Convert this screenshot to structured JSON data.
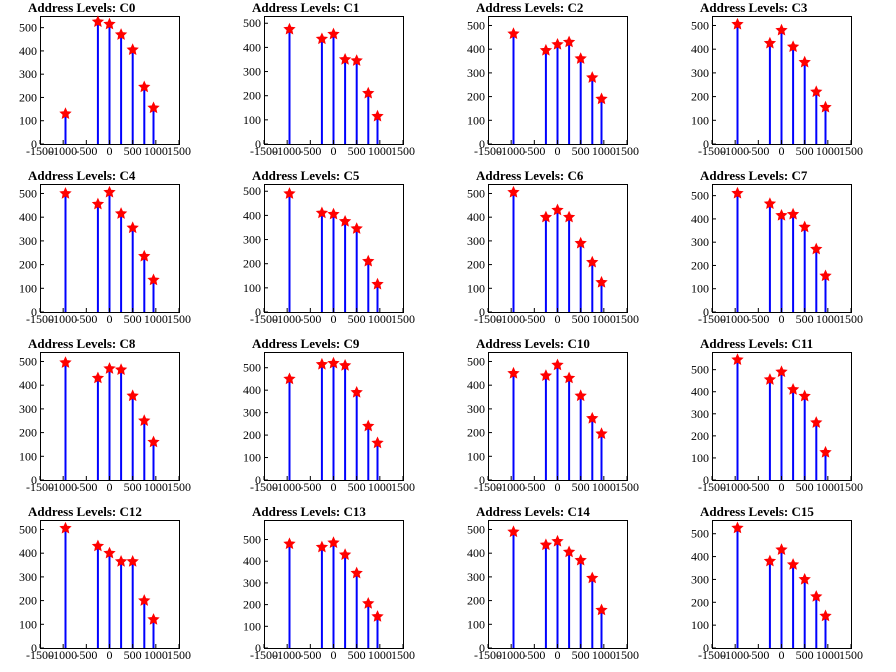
{
  "chart_data": [
    {
      "type": "bar",
      "title": "Address Levels: C0",
      "xlim": [
        -1500,
        1500
      ],
      "ylim": [
        0,
        550
      ],
      "xticks": [
        "-1500",
        "-1000",
        "-500",
        "0",
        "500",
        "1000",
        "1500"
      ],
      "yticks": [
        "0",
        "100",
        "200",
        "300",
        "400",
        "500"
      ],
      "x": [
        -950,
        -250,
        0,
        250,
        500,
        750,
        950
      ],
      "values": [
        130,
        525,
        515,
        470,
        405,
        245,
        155
      ]
    },
    {
      "type": "bar",
      "title": "Address Levels: C1",
      "xlim": [
        -1500,
        1500
      ],
      "ylim": [
        0,
        530
      ],
      "xticks": [
        "-1500",
        "-1000",
        "-500",
        "0",
        "500",
        "1000",
        "1500"
      ],
      "yticks": [
        "0",
        "100",
        "200",
        "300",
        "400",
        "500"
      ],
      "x": [
        -950,
        -250,
        0,
        250,
        500,
        750,
        950
      ],
      "values": [
        475,
        435,
        455,
        350,
        345,
        210,
        115
      ]
    },
    {
      "type": "bar",
      "title": "Address Levels: C2",
      "xlim": [
        -1500,
        1500
      ],
      "ylim": [
        0,
        540
      ],
      "xticks": [
        "-1500",
        "-1000",
        "-500",
        "0",
        "500",
        "1000",
        "1500"
      ],
      "yticks": [
        "0",
        "100",
        "200",
        "300",
        "400",
        "500"
      ],
      "x": [
        -950,
        -250,
        0,
        250,
        500,
        750,
        950
      ],
      "values": [
        465,
        395,
        420,
        430,
        360,
        280,
        190
      ]
    },
    {
      "type": "bar",
      "title": "Address Levels: C3",
      "xlim": [
        -1500,
        1500
      ],
      "ylim": [
        0,
        540
      ],
      "xticks": [
        "-1500",
        "-1000",
        "-500",
        "0",
        "500",
        "1000",
        "1500"
      ],
      "yticks": [
        "0",
        "100",
        "200",
        "300",
        "400",
        "500"
      ],
      "x": [
        -950,
        -250,
        0,
        250,
        500,
        750,
        950
      ],
      "values": [
        505,
        425,
        480,
        410,
        345,
        220,
        155
      ]
    },
    {
      "type": "bar",
      "title": "Address Levels: C4",
      "xlim": [
        -1500,
        1500
      ],
      "ylim": [
        0,
        540
      ],
      "xticks": [
        "-1500",
        "-1000",
        "-500",
        "0",
        "500",
        "1000",
        "1500"
      ],
      "yticks": [
        "0",
        "100",
        "200",
        "300",
        "400",
        "500"
      ],
      "x": [
        -950,
        -250,
        0,
        250,
        500,
        750,
        950
      ],
      "values": [
        500,
        455,
        505,
        415,
        355,
        235,
        135
      ]
    },
    {
      "type": "bar",
      "title": "Address Levels: C5",
      "xlim": [
        -1500,
        1500
      ],
      "ylim": [
        0,
        530
      ],
      "xticks": [
        "-1500",
        "-1000",
        "-500",
        "0",
        "500",
        "1000",
        "1500"
      ],
      "yticks": [
        "0",
        "100",
        "200",
        "300",
        "400",
        "500"
      ],
      "x": [
        -950,
        -250,
        0,
        250,
        500,
        750,
        950
      ],
      "values": [
        490,
        410,
        405,
        375,
        345,
        210,
        115
      ]
    },
    {
      "type": "bar",
      "title": "Address Levels: C6",
      "xlim": [
        -1500,
        1500
      ],
      "ylim": [
        0,
        540
      ],
      "xticks": [
        "-1500",
        "-1000",
        "-500",
        "0",
        "500",
        "1000",
        "1500"
      ],
      "yticks": [
        "0",
        "100",
        "200",
        "300",
        "400",
        "500"
      ],
      "x": [
        -950,
        -250,
        0,
        250,
        500,
        750,
        950
      ],
      "values": [
        505,
        400,
        430,
        400,
        290,
        210,
        125
      ]
    },
    {
      "type": "bar",
      "title": "Address Levels: C7",
      "xlim": [
        -1500,
        1500
      ],
      "ylim": [
        0,
        550
      ],
      "xticks": [
        "-1500",
        "-1000",
        "-500",
        "0",
        "500",
        "1000",
        "1500"
      ],
      "yticks": [
        "0",
        "100",
        "200",
        "300",
        "400",
        "500"
      ],
      "x": [
        -950,
        -250,
        0,
        250,
        500,
        750,
        950
      ],
      "values": [
        510,
        465,
        415,
        420,
        365,
        270,
        155
      ]
    },
    {
      "type": "bar",
      "title": "Address Levels: C8",
      "xlim": [
        -1500,
        1500
      ],
      "ylim": [
        0,
        540
      ],
      "xticks": [
        "-1500",
        "-1000",
        "-500",
        "0",
        "500",
        "1000",
        "1500"
      ],
      "yticks": [
        "0",
        "100",
        "200",
        "300",
        "400",
        "500"
      ],
      "x": [
        -950,
        -250,
        0,
        250,
        500,
        750,
        950
      ],
      "values": [
        495,
        430,
        470,
        465,
        355,
        250,
        160
      ]
    },
    {
      "type": "bar",
      "title": "Address Levels: C9",
      "xlim": [
        -1500,
        1500
      ],
      "ylim": [
        0,
        570
      ],
      "xticks": [
        "-1500",
        "-1000",
        "-500",
        "0",
        "500",
        "1000",
        "1500"
      ],
      "yticks": [
        "0",
        "100",
        "200",
        "300",
        "400",
        "500"
      ],
      "x": [
        -950,
        -250,
        0,
        250,
        500,
        750,
        950
      ],
      "values": [
        450,
        515,
        520,
        510,
        390,
        240,
        165
      ]
    },
    {
      "type": "bar",
      "title": "Address Levels: C10",
      "xlim": [
        -1500,
        1500
      ],
      "ylim": [
        0,
        540
      ],
      "xticks": [
        "-1500",
        "-1000",
        "-500",
        "0",
        "500",
        "1000",
        "1500"
      ],
      "yticks": [
        "0",
        "100",
        "200",
        "300",
        "400",
        "500"
      ],
      "x": [
        -950,
        -250,
        0,
        250,
        500,
        750,
        950
      ],
      "values": [
        450,
        440,
        485,
        430,
        355,
        260,
        195
      ]
    },
    {
      "type": "bar",
      "title": "Address Levels: C11",
      "xlim": [
        -1500,
        1500
      ],
      "ylim": [
        0,
        580
      ],
      "xticks": [
        "-1500",
        "-1000",
        "-500",
        "0",
        "500",
        "1000",
        "1500"
      ],
      "yticks": [
        "0",
        "100",
        "200",
        "300",
        "400",
        "500"
      ],
      "x": [
        -950,
        -250,
        0,
        250,
        500,
        750,
        950
      ],
      "values": [
        545,
        455,
        490,
        410,
        380,
        260,
        125
      ]
    },
    {
      "type": "bar",
      "title": "Address Levels: C12",
      "xlim": [
        -1500,
        1500
      ],
      "ylim": [
        0,
        540
      ],
      "xticks": [
        "-1500",
        "-1000",
        "-500",
        "0",
        "500",
        "1000",
        "1500"
      ],
      "yticks": [
        "0",
        "100",
        "200",
        "300",
        "400",
        "500"
      ],
      "x": [
        -950,
        -250,
        0,
        250,
        500,
        750,
        950
      ],
      "values": [
        505,
        430,
        400,
        365,
        365,
        200,
        120
      ]
    },
    {
      "type": "bar",
      "title": "Address Levels: C13",
      "xlim": [
        -1500,
        1500
      ],
      "ylim": [
        0,
        590
      ],
      "xticks": [
        "-1500",
        "-1000",
        "-500",
        "0",
        "500",
        "1000",
        "1500"
      ],
      "yticks": [
        "0",
        "100",
        "200",
        "300",
        "400",
        "500"
      ],
      "x": [
        -950,
        -250,
        0,
        250,
        500,
        750,
        950
      ],
      "values": [
        480,
        465,
        485,
        430,
        345,
        205,
        145
      ]
    },
    {
      "type": "bar",
      "title": "Address Levels: C14",
      "xlim": [
        -1500,
        1500
      ],
      "ylim": [
        0,
        540
      ],
      "xticks": [
        "-1500",
        "-1000",
        "-500",
        "0",
        "500",
        "1000",
        "1500"
      ],
      "yticks": [
        "0",
        "100",
        "200",
        "300",
        "400",
        "500"
      ],
      "x": [
        -950,
        -250,
        0,
        250,
        500,
        750,
        950
      ],
      "values": [
        490,
        435,
        450,
        405,
        370,
        295,
        160
      ]
    },
    {
      "type": "bar",
      "title": "Address Levels: C15",
      "xlim": [
        -1500,
        1500
      ],
      "ylim": [
        0,
        560
      ],
      "xticks": [
        "-1500",
        "-1000",
        "-500",
        "0",
        "500",
        "1000",
        "1500"
      ],
      "yticks": [
        "0",
        "100",
        "200",
        "300",
        "400",
        "500"
      ],
      "x": [
        -950,
        -250,
        0,
        250,
        500,
        750,
        950
      ],
      "values": [
        525,
        380,
        430,
        365,
        300,
        225,
        140
      ]
    }
  ],
  "colors": {
    "bar": "#0000ff",
    "marker": "#ff0000",
    "axis": "#000000"
  }
}
